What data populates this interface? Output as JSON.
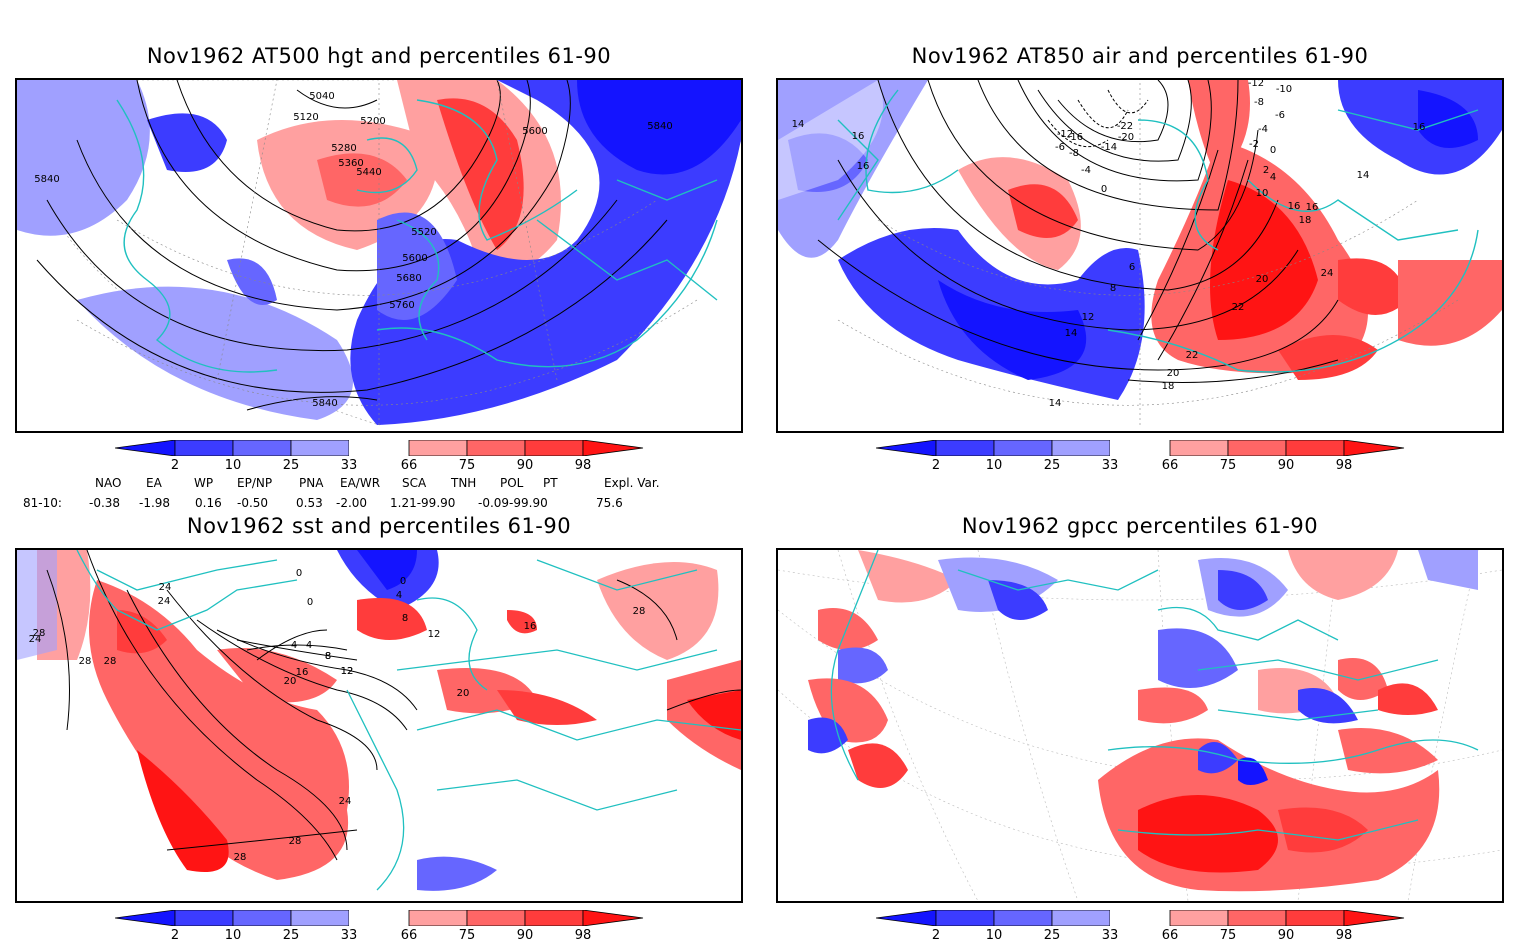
{
  "panels": [
    {
      "id": "p1",
      "title": "Nov1962 AT500 hgt and percentiles 61-90",
      "contour_labels": [
        "5040",
        "5120",
        "5200",
        "5280",
        "5360",
        "5440",
        "5520",
        "5600",
        "5680",
        "5760",
        "5840",
        "5600",
        "5840",
        "5840"
      ]
    },
    {
      "id": "p2",
      "title": "Nov1962 AT850 air and percentiles 61-90",
      "contour_labels": [
        "-12",
        "-10",
        "-8",
        "-6",
        "-4",
        "-2",
        "0",
        "-22",
        "-20",
        "-16",
        "-14",
        "-12",
        "-8",
        "-6",
        "-4",
        "0",
        "2",
        "4",
        "6",
        "8",
        "10",
        "12",
        "14",
        "16",
        "18",
        "20",
        "22",
        "24",
        "22",
        "20",
        "18",
        "16",
        "16",
        "14",
        "14",
        "14",
        "16",
        "16"
      ]
    },
    {
      "id": "p3",
      "title": "Nov1962 sst and percentiles 61-90",
      "contour_labels": [
        "24",
        "28",
        "24",
        "0",
        "0",
        "4",
        "8",
        "12",
        "16",
        "20",
        "12",
        "8",
        "4",
        "0",
        "4",
        "8",
        "12",
        "16",
        "20",
        "24",
        "28",
        "28",
        "28",
        "24",
        "28",
        "28"
      ]
    },
    {
      "id": "p4",
      "title": "Nov1962 gpcc percentiles 61-90",
      "contour_labels": []
    }
  ],
  "colorbar": {
    "ticks": [
      "2",
      "10",
      "25",
      "33",
      "66",
      "75",
      "90",
      "98"
    ],
    "colors": [
      "#1414ff",
      "#3c3cff",
      "#6666ff",
      "#a0a0ff",
      "#ffffff",
      "#ffa0a0",
      "#ff6666",
      "#ff3c3c",
      "#ff1414"
    ]
  },
  "indices": {
    "headers": [
      "NAO",
      "EA",
      "WP",
      "EP/NP",
      "PNA",
      "EA/WR",
      "SCA",
      "TNH",
      "POL",
      "PT",
      "Expl. Var."
    ],
    "row_label": "81-10:",
    "values": [
      "-0.38",
      "-1.98",
      "0.16",
      "-0.50",
      "0.53",
      "-2.00",
      "1.21-99.90",
      "-0.09-99.90",
      "75.6"
    ]
  }
}
